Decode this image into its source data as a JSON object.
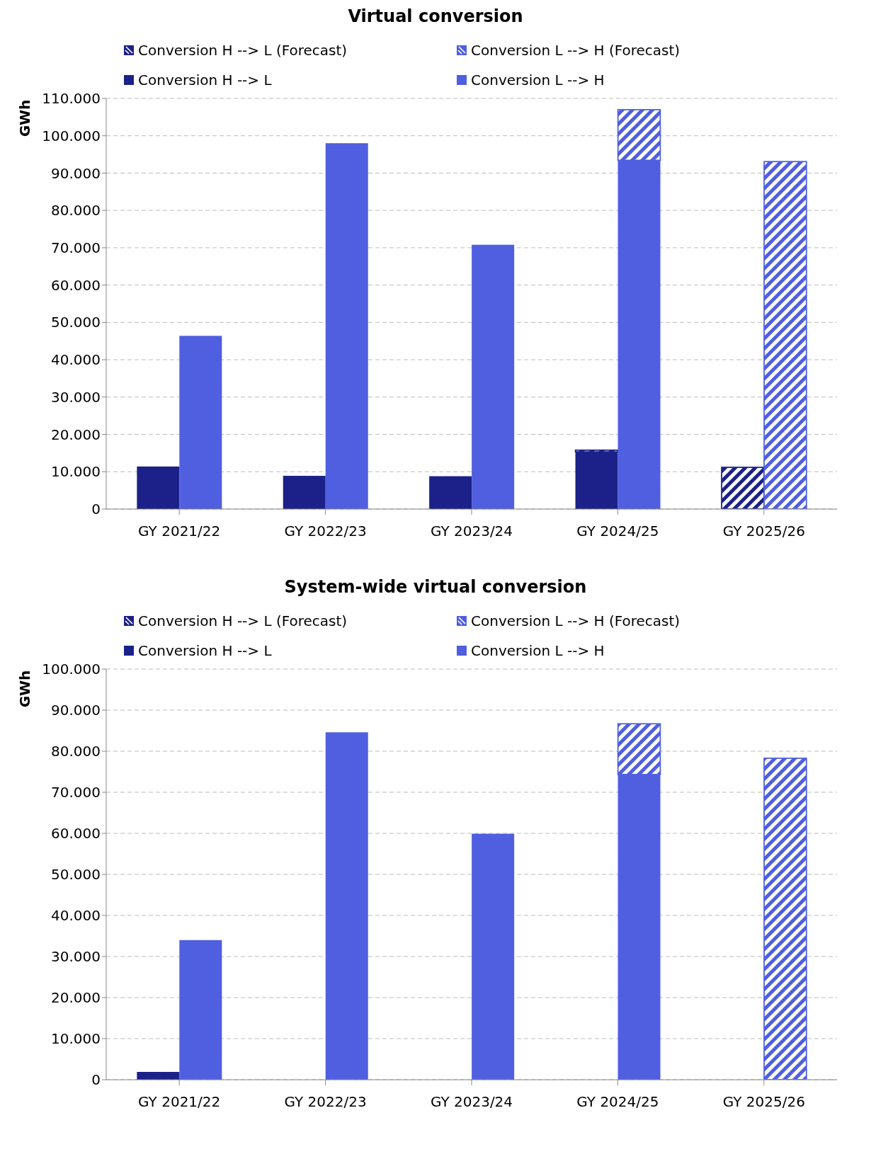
{
  "chart_data": [
    {
      "type": "bar",
      "title": "Virtual conversion",
      "ylabel": "GWh",
      "categories": [
        "GY 2021/22",
        "GY 2022/23",
        "GY 2023/24",
        "GY 2024/25",
        "GY 2025/26"
      ],
      "legend": "top",
      "grid": "y",
      "ylim": [
        0,
        110000
      ],
      "yticks": [
        {
          "value": 0,
          "label": "0"
        },
        {
          "value": 10000,
          "label": "10.000"
        },
        {
          "value": 20000,
          "label": "20.000"
        },
        {
          "value": 30000,
          "label": "30.000"
        },
        {
          "value": 40000,
          "label": "40.000"
        },
        {
          "value": 50000,
          "label": "50.000"
        },
        {
          "value": 60000,
          "label": "60.000"
        },
        {
          "value": 70000,
          "label": "70.000"
        },
        {
          "value": 80000,
          "label": "80.000"
        },
        {
          "value": 90000,
          "label": "90.000"
        },
        {
          "value": 100000,
          "label": "100.000"
        },
        {
          "value": 110000,
          "label": "110.000"
        }
      ],
      "series": [
        {
          "name": "Conversion H --> L",
          "color": "#1b2188",
          "values": [
            11400,
            8900,
            8800,
            15300,
            null
          ]
        },
        {
          "name": "Conversion H --> L (Forecast)",
          "color": "#1b2188",
          "base": [
            null,
            null,
            null,
            15300,
            0
          ],
          "values": [
            null,
            null,
            null,
            500,
            11200
          ]
        },
        {
          "name": "Conversion L --> H",
          "color": "#4f5fdf",
          "values": [
            46400,
            98000,
            70800,
            93400,
            null
          ]
        },
        {
          "name": "Conversion L --> H (Forecast)",
          "color": "#4f5fdf",
          "base": [
            null,
            null,
            null,
            93400,
            0
          ],
          "values": [
            null,
            null,
            null,
            13600,
            93100
          ]
        }
      ]
    },
    {
      "type": "bar",
      "title": "System-wide virtual conversion",
      "ylabel": "GWh",
      "categories": [
        "GY 2021/22",
        "GY 2022/23",
        "GY 2023/24",
        "GY 2024/25",
        "GY 2025/26"
      ],
      "legend": "top",
      "grid": "y",
      "ylim": [
        0,
        100000
      ],
      "yticks": [
        {
          "value": 0,
          "label": "0"
        },
        {
          "value": 10000,
          "label": "10.000"
        },
        {
          "value": 20000,
          "label": "20.000"
        },
        {
          "value": 30000,
          "label": "30.000"
        },
        {
          "value": 40000,
          "label": "40.000"
        },
        {
          "value": 50000,
          "label": "50.000"
        },
        {
          "value": 60000,
          "label": "60.000"
        },
        {
          "value": 70000,
          "label": "70.000"
        },
        {
          "value": 80000,
          "label": "80.000"
        },
        {
          "value": 90000,
          "label": "90.000"
        },
        {
          "value": 100000,
          "label": "100.000"
        }
      ],
      "series": [
        {
          "name": "Conversion H --> L",
          "color": "#1b2188",
          "values": [
            1900,
            null,
            null,
            null,
            null
          ]
        },
        {
          "name": "Conversion H --> L (Forecast)",
          "color": "#1b2188",
          "base": [
            null,
            null,
            null,
            null,
            null
          ],
          "values": [
            null,
            null,
            null,
            null,
            null
          ]
        },
        {
          "name": "Conversion L --> H",
          "color": "#4f5fdf",
          "values": [
            34000,
            84600,
            59900,
            74300,
            null
          ]
        },
        {
          "name": "Conversion L --> H (Forecast)",
          "color": "#4f5fdf",
          "base": [
            null,
            null,
            null,
            74300,
            0
          ],
          "values": [
            null,
            null,
            null,
            12400,
            78300
          ]
        }
      ]
    }
  ]
}
